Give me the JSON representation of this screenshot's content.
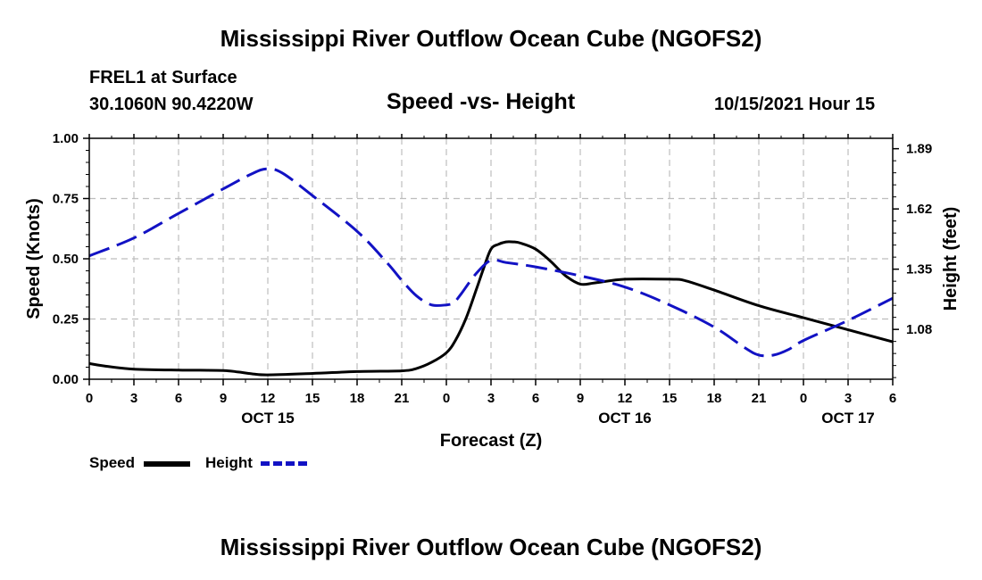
{
  "page": {
    "title": "Mississippi River Outflow Ocean Cube (NGOFS2)",
    "footer_title": "Mississippi River Outflow Ocean Cube (NGOFS2)"
  },
  "station": {
    "name": "FREL1 at Surface",
    "coords": "30.1060N  90.4220W",
    "datetime": "10/15/2021 Hour 15"
  },
  "chart_data": {
    "type": "line",
    "title": "Speed -vs- Height",
    "xlabel": "Forecast (Z)",
    "ylabel": "Speed (Knots)",
    "y2label": "Height (feet)",
    "grid": true,
    "x_range": [
      0,
      54
    ],
    "x_ticks": [
      {
        "x": 0,
        "label": "0"
      },
      {
        "x": 3,
        "label": "3"
      },
      {
        "x": 6,
        "label": "6"
      },
      {
        "x": 9,
        "label": "9"
      },
      {
        "x": 12,
        "label": "12"
      },
      {
        "x": 15,
        "label": "15"
      },
      {
        "x": 18,
        "label": "18"
      },
      {
        "x": 21,
        "label": "21"
      },
      {
        "x": 24,
        "label": "0"
      },
      {
        "x": 27,
        "label": "3"
      },
      {
        "x": 30,
        "label": "6"
      },
      {
        "x": 33,
        "label": "9"
      },
      {
        "x": 36,
        "label": "12"
      },
      {
        "x": 39,
        "label": "15"
      },
      {
        "x": 42,
        "label": "18"
      },
      {
        "x": 45,
        "label": "21"
      },
      {
        "x": 48,
        "label": "0"
      },
      {
        "x": 51,
        "label": "3"
      },
      {
        "x": 54,
        "label": "6"
      }
    ],
    "date_labels": [
      {
        "x": 12,
        "label": "OCT 15"
      },
      {
        "x": 36,
        "label": "OCT 16"
      },
      {
        "x": 51,
        "label": "OCT 17"
      }
    ],
    "ylim": [
      0,
      1.0
    ],
    "y_ticks": [
      0.0,
      0.25,
      0.5,
      0.75,
      1.0
    ],
    "y_tick_labels": [
      "0.00",
      "0.25",
      "0.50",
      "0.75",
      "1.00"
    ],
    "y2lim": [
      0.8566,
      1.9366
    ],
    "y2_ticks": [
      1.08,
      1.35,
      1.62,
      1.89
    ],
    "y2_tick_labels": [
      "1.08",
      "1.35",
      "1.62",
      "1.89"
    ],
    "series": [
      {
        "name": "Speed",
        "color": "#000000",
        "dash": "solid",
        "axis": "left",
        "x": [
          0,
          1,
          3,
          6,
          9,
          10,
          11,
          12,
          15,
          18,
          21,
          22,
          23,
          24,
          24.6,
          25.3,
          26,
          26.5,
          27,
          27.5,
          28,
          28.5,
          29,
          30,
          31,
          32,
          33,
          34,
          36,
          39,
          40,
          42,
          45,
          48,
          51,
          54
        ],
        "values": [
          0.065,
          0.055,
          0.042,
          0.038,
          0.036,
          0.03,
          0.022,
          0.018,
          0.024,
          0.032,
          0.035,
          0.045,
          0.07,
          0.11,
          0.16,
          0.25,
          0.37,
          0.46,
          0.54,
          0.56,
          0.57,
          0.57,
          0.565,
          0.54,
          0.49,
          0.43,
          0.395,
          0.4,
          0.415,
          0.415,
          0.41,
          0.37,
          0.305,
          0.255,
          0.205,
          0.155
        ]
      },
      {
        "name": "Height",
        "color": "#1212c4",
        "dash": "dashed",
        "axis": "right",
        "x": [
          0,
          3,
          6,
          9,
          11,
          12,
          13,
          15,
          18,
          20,
          21,
          22,
          23,
          24,
          24.5,
          25,
          26,
          27,
          28,
          30,
          33,
          36,
          39,
          42,
          44,
          45,
          46,
          47,
          48,
          51,
          54
        ],
        "values": [
          1.41,
          1.49,
          1.6,
          1.71,
          1.78,
          1.8,
          1.78,
          1.68,
          1.52,
          1.38,
          1.3,
          1.23,
          1.19,
          1.19,
          1.2,
          1.24,
          1.33,
          1.39,
          1.38,
          1.36,
          1.32,
          1.27,
          1.19,
          1.09,
          1.0,
          0.965,
          0.965,
          0.99,
          1.03,
          1.12,
          1.22
        ]
      }
    ]
  },
  "legend": {
    "speed_label": "Speed",
    "height_label": "Height"
  }
}
